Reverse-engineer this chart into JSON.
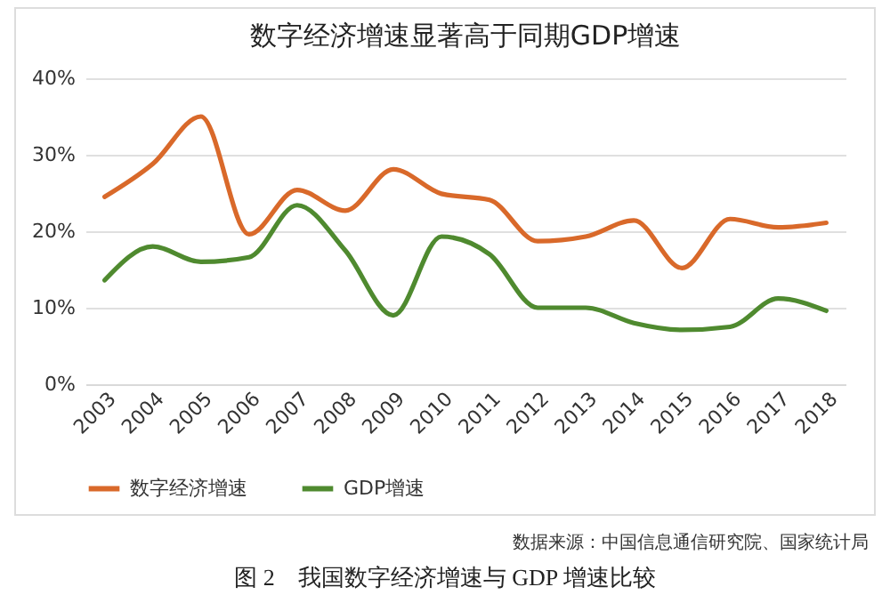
{
  "chart_data": {
    "type": "line",
    "title": "数字经济增速显著高于同期GDP增速",
    "categories": [
      "2003",
      "2004",
      "2005",
      "2006",
      "2007",
      "2008",
      "2009",
      "2010",
      "2011",
      "2012",
      "2013",
      "2014",
      "2015",
      "2016",
      "2017",
      "2018"
    ],
    "series": [
      {
        "name": "数字经济增速",
        "color": "#d9692a",
        "values": [
          24.5,
          28.8,
          35.0,
          19.6,
          25.4,
          22.7,
          28.1,
          24.9,
          24.1,
          18.7,
          19.3,
          21.4,
          15.2,
          21.6,
          20.5,
          21.1
        ]
      },
      {
        "name": "GDP增速",
        "color": "#4f8a2f",
        "values": [
          13.6,
          18.0,
          16.0,
          16.6,
          23.4,
          17.5,
          9,
          19.3,
          17,
          10,
          10,
          8,
          7.1,
          7.5,
          11.2,
          9.6
        ]
      }
    ],
    "ylim": [
      0,
      40
    ],
    "yticks": [
      {
        "value": 0,
        "label": "0%"
      },
      {
        "value": 10,
        "label": "10%"
      },
      {
        "value": 20,
        "label": "20%"
      },
      {
        "value": 30,
        "label": "30%"
      },
      {
        "value": 40,
        "label": "40%"
      }
    ],
    "grid": "y",
    "legend": "bottom",
    "marker": "none",
    "line_style": "solid",
    "annotations": [
      "数据来源：中国信息通信研究院、国家统计局",
      "图 2　我国数字经济增速与 GDP 增速比较"
    ]
  }
}
